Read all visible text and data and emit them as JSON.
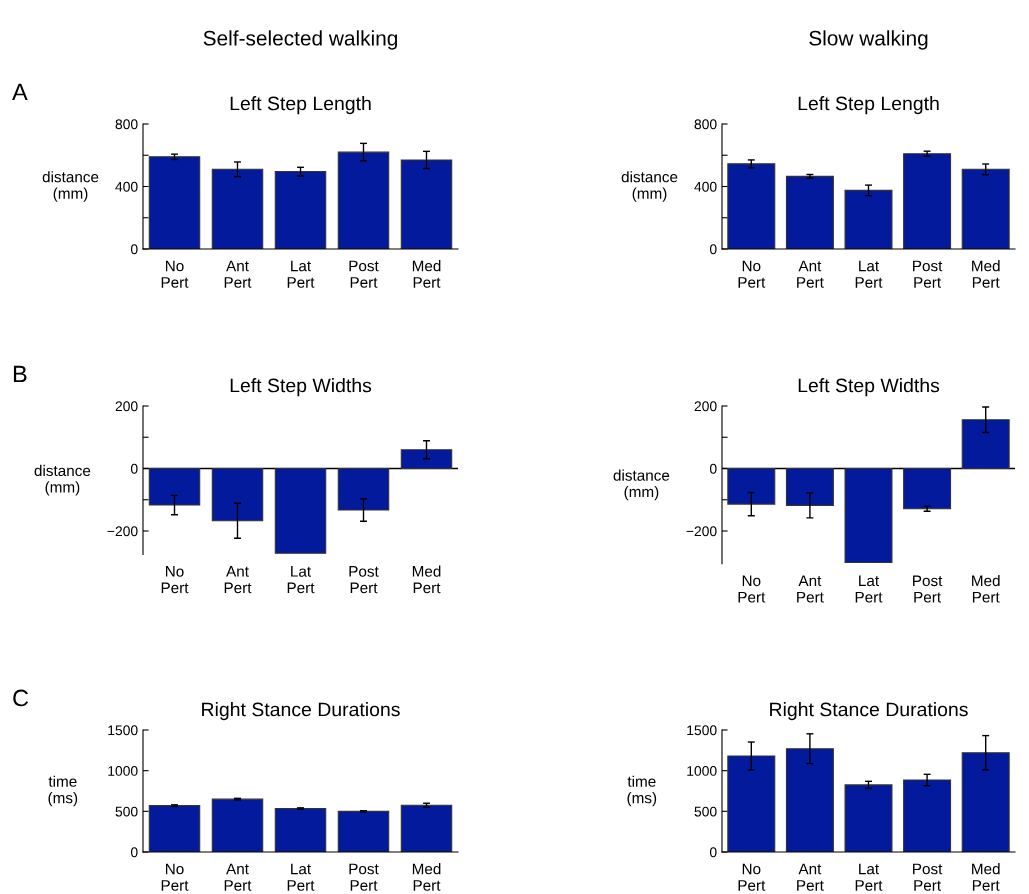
{
  "chart_data": [
    {
      "type": "bar",
      "title": "Left Step Length",
      "subtitle": "Self-selected walking",
      "annotations": [
        "A"
      ],
      "ylabel": "distance\n(mm)",
      "categories": [
        "No\nPert",
        "Ant\nPert",
        "Lat\nPert",
        "Post\nPert",
        "Med\nPert"
      ],
      "color": "#041a9c",
      "values": [
        590,
        510,
        495,
        620,
        570
      ],
      "errors": [
        17,
        47,
        28,
        56,
        55
      ],
      "ylim": [
        0,
        800
      ],
      "yticks": [
        0,
        {
          "value": 200,
          "label": null
        },
        400,
        {
          "value": 600,
          "label": null
        },
        800
      ],
      "grid": false,
      "legend": false
    },
    {
      "type": "bar",
      "title": "Left Step Length",
      "subtitle": "Slow walking",
      "ylabel": "distance\n(mm)",
      "categories": [
        "No\nPert",
        "Ant\nPert",
        "Lat\nPert",
        "Post\nPert",
        "Med\nPert"
      ],
      "color": "#041a9c",
      "values": [
        545,
        465,
        375,
        610,
        510
      ],
      "errors": [
        25,
        12,
        34,
        16,
        34
      ],
      "ylim": [
        0,
        800
      ],
      "yticks": [
        0,
        {
          "value": 200,
          "label": null
        },
        400,
        {
          "value": 600,
          "label": null
        },
        800
      ],
      "grid": false,
      "legend": false
    },
    {
      "type": "bar",
      "title": "Left Step Widths",
      "annotations": [
        "B"
      ],
      "ylabel": "distance\n(mm)",
      "categories": [
        "No\nPert",
        "Ant\nPert",
        "Lat\nPert",
        "Post\nPert",
        "Med\nPert"
      ],
      "color": "#041a9c",
      "values": [
        -117,
        -167,
        -271,
        -133,
        60
      ],
      "errors": [
        31,
        56,
        null,
        36,
        29
      ],
      "ylim": [
        -275,
        200
      ],
      "yticks": [
        {
          "value": -200,
          "label": "−200"
        },
        {
          "value": -100,
          "label": null
        },
        0,
        {
          "value": 100,
          "label": null
        },
        200
      ],
      "ref_lines": [
        {
          "axis": "y",
          "value": 0,
          "label": null,
          "color": "#000000"
        }
      ],
      "grid": false,
      "legend": false
    },
    {
      "type": "bar",
      "title": "Left Step Widths",
      "ylabel": "distance\n(mm)",
      "categories": [
        "No\nPert",
        "Ant\nPert",
        "Lat\nPert",
        "Post\nPert",
        "Med\nPert"
      ],
      "color": "#041a9c",
      "values": [
        -114,
        -118,
        -301,
        -129,
        156
      ],
      "errors": [
        37,
        40,
        null,
        8,
        41
      ],
      "ylim": [
        -305,
        200
      ],
      "yticks": [
        {
          "value": -200,
          "label": "−200"
        },
        {
          "value": -100,
          "label": null
        },
        0,
        {
          "value": 100,
          "label": null
        },
        200
      ],
      "ref_lines": [
        {
          "axis": "y",
          "value": 0,
          "label": null,
          "color": "#000000"
        }
      ],
      "grid": false,
      "legend": false
    },
    {
      "type": "bar",
      "title": "Right Stance Durations",
      "annotations": [
        "C"
      ],
      "ylabel": "time\n(ms)",
      "categories": [
        "No\nPert",
        "Ant\nPert",
        "Lat\nPert",
        "Post\nPert",
        "Med\nPert"
      ],
      "color": "#041a9c",
      "values": [
        570,
        650,
        535,
        500,
        575
      ],
      "errors": [
        10,
        10,
        8,
        8,
        25
      ],
      "ylim": [
        0,
        1500
      ],
      "yticks": [
        0,
        500,
        1000,
        1500
      ],
      "grid": false,
      "legend": false
    },
    {
      "type": "bar",
      "title": "Right Stance Durations",
      "ylabel": "time\n(ms)",
      "categories": [
        "No\nPert",
        "Ant\nPert",
        "Lat\nPert",
        "Post\nPert",
        "Med\nPert"
      ],
      "color": "#041a9c",
      "values": [
        1180,
        1270,
        825,
        885,
        1220
      ],
      "errors": [
        172,
        183,
        44,
        70,
        211
      ],
      "ylim": [
        0,
        1500
      ],
      "yticks": [
        0,
        500,
        1000,
        1500
      ],
      "grid": false,
      "legend": false
    }
  ]
}
